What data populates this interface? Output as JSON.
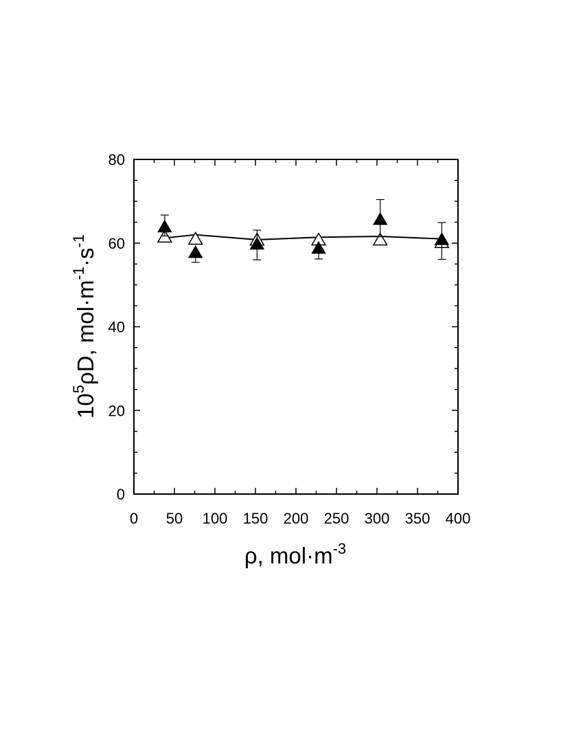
{
  "chart_data": {
    "type": "scatter",
    "xlim": [
      0,
      400
    ],
    "ylim": [
      0,
      80
    ],
    "x_ticks": [
      0,
      50,
      100,
      150,
      200,
      250,
      300,
      350,
      400
    ],
    "x_tick_labels": [
      "0",
      "50",
      "100",
      "150",
      "200",
      "250",
      "300",
      "350",
      "400"
    ],
    "y_ticks": [
      0,
      20,
      40,
      60,
      80
    ],
    "y_tick_labels": [
      "0",
      "20",
      "40",
      "60",
      "80"
    ],
    "xlabel": {
      "base": "ρ,  mol·m",
      "sup": "-3"
    },
    "ylabel": {
      "part1": "10",
      "sup1": "5",
      "part2": "ρD, mol·m",
      "sup2": "-1",
      "part3": "·s",
      "sup3": "-1"
    },
    "grid": false,
    "series": [
      {
        "marker": "filled-triangle",
        "color": "#000000",
        "points": [
          {
            "x": 38,
            "y": 63.7,
            "err_low": 2.0,
            "err_high": 3.0
          },
          {
            "x": 76,
            "y": 57.6,
            "err_low": 2.2,
            "err_high": 0
          },
          {
            "x": 152,
            "y": 59.6,
            "err_low": 3.6,
            "err_high": 3.5
          },
          {
            "x": 228,
            "y": 58.6,
            "err_low": 2.4,
            "err_high": 0
          },
          {
            "x": 304,
            "y": 65.5,
            "err_low": 4.0,
            "err_high": 4.9
          },
          {
            "x": 380,
            "y": 60.7,
            "err_low": 4.6,
            "err_high": 4.2
          }
        ]
      },
      {
        "marker": "open-triangle",
        "color": "#000000",
        "points": [
          {
            "x": 38,
            "y": 61.3
          },
          {
            "x": 76,
            "y": 60.8
          },
          {
            "x": 152,
            "y": 60.6
          },
          {
            "x": 228,
            "y": 60.6
          },
          {
            "x": 304,
            "y": 60.6
          },
          {
            "x": 380,
            "y": 60.0
          }
        ]
      },
      {
        "marker": "line",
        "color": "#000000",
        "points": [
          {
            "x": 38,
            "y": 61.2
          },
          {
            "x": 76,
            "y": 62.0
          },
          {
            "x": 152,
            "y": 60.8
          },
          {
            "x": 228,
            "y": 61.4
          },
          {
            "x": 304,
            "y": 61.6
          },
          {
            "x": 380,
            "y": 61.0
          }
        ]
      }
    ]
  }
}
